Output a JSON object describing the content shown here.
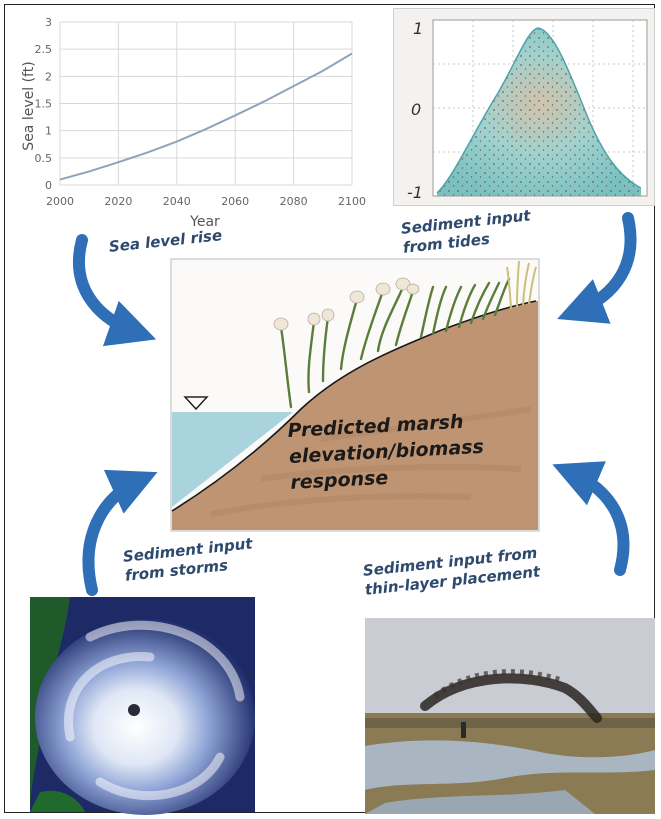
{
  "chart_data": {
    "type": "line",
    "x": [
      2000,
      2010,
      2020,
      2030,
      2040,
      2050,
      2060,
      2070,
      2080,
      2090,
      2100
    ],
    "series": [
      {
        "values": [
          0.1,
          0.25,
          0.42,
          0.6,
          0.8,
          1.03,
          1.28,
          1.54,
          1.82,
          2.1,
          2.42
        ],
        "color": "#8fa3bd"
      }
    ],
    "xticks": [
      "2000",
      "2020",
      "2040",
      "2060",
      "2080",
      "2100"
    ],
    "yticks": [
      "0",
      "0.5",
      "1",
      "1.5",
      "2",
      "2.5",
      "3"
    ],
    "xlabel": "Year",
    "ylabel": "Sea level (ft)",
    "xlim": [
      2000,
      2100
    ],
    "ylim": [
      0,
      3
    ],
    "grid": true
  },
  "tide_plot": {
    "tick_top": "1",
    "tick_mid": "0",
    "tick_bottom": "-1"
  },
  "labels": {
    "sea_level_rise": "Sea level rise",
    "sediment_tides": "Sediment input\nfrom tides",
    "sediment_storms": "Sediment input\nfrom storms",
    "sediment_thin_layer": "Sediment input from\nthin-layer placement"
  },
  "center": {
    "text": "Predicted marsh\nelevation/biomass\nresponse"
  },
  "colors": {
    "arrow": "#2e6fb8",
    "label": "#2d4a6e",
    "water": "#a9d3dd",
    "sediment": "#bf9472",
    "tide_fill": "#7fc6c4"
  }
}
